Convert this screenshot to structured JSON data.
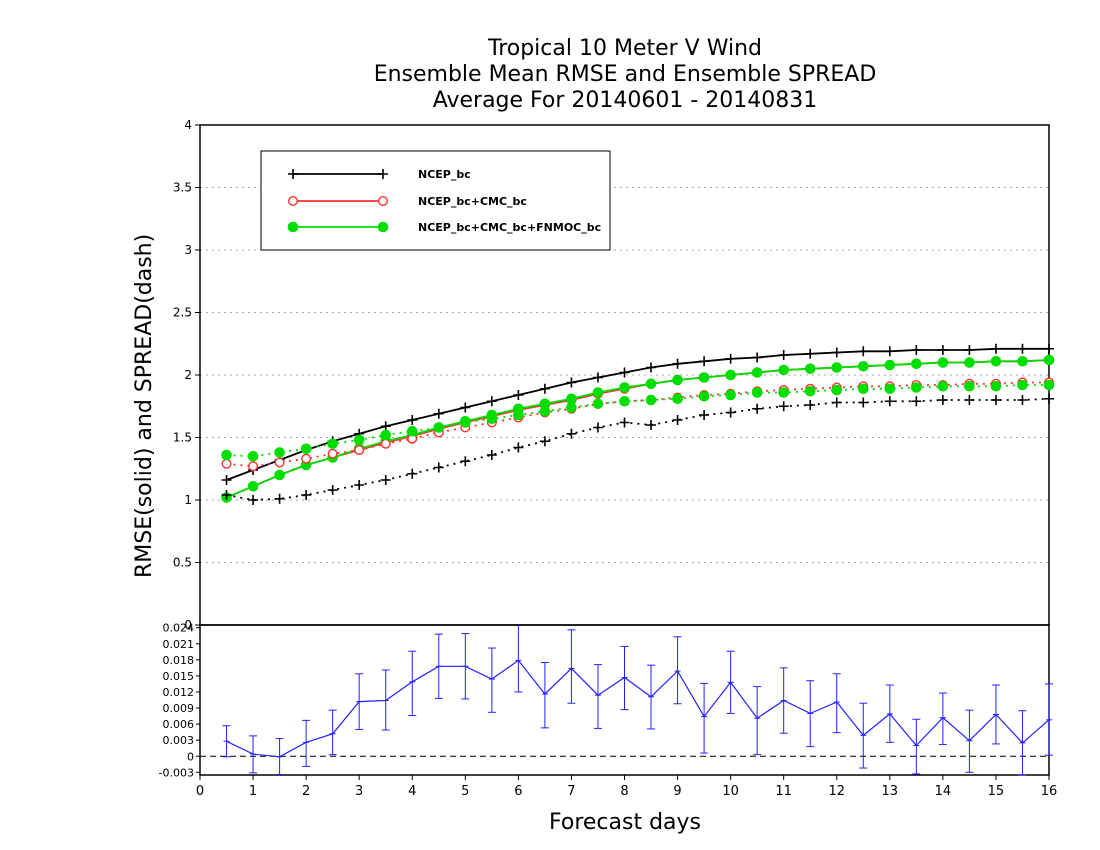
{
  "chart_data": [
    {
      "type": "line",
      "title": [
        "Tropical 10 Meter V Wind",
        "Ensemble Mean RMSE and Ensemble SPREAD",
        "Average For 20140601 - 20140831"
      ],
      "xlabel": "Forecast days",
      "ylabel": "RMSE(solid) and SPREAD(dash)",
      "x": [
        0.5,
        1.0,
        1.5,
        2.0,
        2.5,
        3.0,
        3.5,
        4.0,
        4.5,
        5.0,
        5.5,
        6.0,
        6.5,
        7.0,
        7.5,
        8.0,
        8.5,
        9.0,
        9.5,
        10.0,
        10.5,
        11.0,
        11.5,
        12.0,
        12.5,
        13.0,
        13.5,
        14.0,
        14.5,
        15.0,
        15.5,
        16.0
      ],
      "xlim": [
        0,
        16
      ],
      "ylim": [
        0,
        4
      ],
      "yticks": [
        0,
        0.5,
        1,
        1.5,
        2,
        2.5,
        3,
        3.5,
        4
      ],
      "grid": true,
      "legend_position": "top-left",
      "series": [
        {
          "name": "NCEP_bc",
          "style": "solid",
          "marker": "plus",
          "color": "#000000",
          "values": [
            1.16,
            1.24,
            1.32,
            1.4,
            1.47,
            1.53,
            1.59,
            1.64,
            1.69,
            1.74,
            1.79,
            1.84,
            1.89,
            1.94,
            1.98,
            2.02,
            2.06,
            2.09,
            2.11,
            2.13,
            2.14,
            2.16,
            2.17,
            2.18,
            2.19,
            2.19,
            2.2,
            2.2,
            2.2,
            2.21,
            2.21,
            2.21
          ]
        },
        {
          "name": "NCEP_bc+CMC_bc",
          "style": "solid",
          "marker": "open-circle",
          "color": "#ff3030",
          "values": [
            1.02,
            1.11,
            1.2,
            1.28,
            1.34,
            1.4,
            1.46,
            1.51,
            1.57,
            1.62,
            1.67,
            1.72,
            1.76,
            1.8,
            1.85,
            1.89,
            1.93,
            1.96,
            1.98,
            2.0,
            2.02,
            2.04,
            2.05,
            2.06,
            2.07,
            2.08,
            2.09,
            2.1,
            2.1,
            2.11,
            2.11,
            2.12
          ]
        },
        {
          "name": "NCEP_bc+CMC_bc+FNMOC_bc",
          "style": "solid",
          "marker": "filled-circle",
          "color": "#00dd00",
          "values": [
            1.02,
            1.11,
            1.2,
            1.28,
            1.34,
            1.41,
            1.47,
            1.52,
            1.58,
            1.63,
            1.68,
            1.73,
            1.77,
            1.81,
            1.86,
            1.9,
            1.93,
            1.96,
            1.98,
            2.0,
            2.02,
            2.04,
            2.05,
            2.06,
            2.07,
            2.08,
            2.09,
            2.1,
            2.1,
            2.11,
            2.11,
            2.12
          ]
        },
        {
          "name": "NCEP_bc",
          "style": "dash",
          "marker": "plus",
          "color": "#000000",
          "values": [
            1.04,
            1.0,
            1.01,
            1.04,
            1.08,
            1.12,
            1.16,
            1.21,
            1.26,
            1.31,
            1.36,
            1.42,
            1.47,
            1.53,
            1.58,
            1.62,
            1.6,
            1.64,
            1.68,
            1.7,
            1.73,
            1.75,
            1.76,
            1.78,
            1.78,
            1.79,
            1.79,
            1.8,
            1.8,
            1.8,
            1.8,
            1.81
          ]
        },
        {
          "name": "NCEP_bc+CMC_bc",
          "style": "dash",
          "marker": "open-circle",
          "color": "#ff3030",
          "values": [
            1.29,
            1.27,
            1.3,
            1.33,
            1.37,
            1.4,
            1.45,
            1.49,
            1.54,
            1.58,
            1.62,
            1.66,
            1.7,
            1.73,
            1.77,
            1.79,
            1.8,
            1.82,
            1.84,
            1.85,
            1.87,
            1.88,
            1.89,
            1.9,
            1.91,
            1.91,
            1.92,
            1.92,
            1.93,
            1.93,
            1.94,
            1.94
          ]
        },
        {
          "name": "NCEP_bc+CMC_bc+FNMOC_bc",
          "style": "dash",
          "marker": "filled-circle",
          "color": "#00dd00",
          "values": [
            1.36,
            1.35,
            1.38,
            1.41,
            1.45,
            1.48,
            1.52,
            1.55,
            1.58,
            1.62,
            1.65,
            1.68,
            1.71,
            1.74,
            1.77,
            1.79,
            1.8,
            1.81,
            1.83,
            1.84,
            1.86,
            1.86,
            1.87,
            1.88,
            1.89,
            1.89,
            1.9,
            1.91,
            1.91,
            1.91,
            1.92,
            1.92
          ]
        }
      ]
    },
    {
      "type": "line",
      "xlabel": "Forecast days",
      "x": [
        0.5,
        1.0,
        1.5,
        2.0,
        2.5,
        3.0,
        3.5,
        4.0,
        4.5,
        5.0,
        5.5,
        6.0,
        6.5,
        7.0,
        7.5,
        8.0,
        8.5,
        9.0,
        9.5,
        10.0,
        10.5,
        11.0,
        11.5,
        12.0,
        12.5,
        13.0,
        13.5,
        14.0,
        14.5,
        15.0,
        15.5,
        16.0
      ],
      "xlim": [
        0,
        16
      ],
      "xticks": [
        "0",
        "1",
        "2",
        "3",
        "4",
        "5",
        "6",
        "7",
        "8",
        "9",
        "10",
        "11",
        "12",
        "13",
        "14",
        "15",
        "16"
      ],
      "ylim": [
        -0.0035,
        0.0245
      ],
      "yticks": [
        "-0.003",
        "0",
        "0.003",
        "0.006",
        "0.009",
        "0.012",
        "0.015",
        "0.018",
        "0.021",
        "0.024"
      ],
      "zero_line": "dashed",
      "color": "#2222ff",
      "error_bars": true,
      "values": [
        0.0028,
        0.0004,
        -0.0001,
        0.0026,
        0.0042,
        0.0102,
        0.0104,
        0.0139,
        0.0168,
        0.0168,
        0.0144,
        0.0179,
        0.0116,
        0.0164,
        0.0114,
        0.0147,
        0.0111,
        0.0159,
        0.0074,
        0.0138,
        0.0071,
        0.0104,
        0.008,
        0.0101,
        0.0039,
        0.0079,
        0.002,
        0.0072,
        0.0029,
        0.0078,
        0.0025,
        0.0068
      ],
      "err_low": [
        -0.0001,
        -0.0031,
        -0.0034,
        -0.0019,
        0.0003,
        0.005,
        0.0049,
        0.0076,
        0.0108,
        0.0107,
        0.0082,
        0.012,
        0.0053,
        0.0099,
        0.0052,
        0.0087,
        0.0051,
        0.0098,
        0.0006,
        0.008,
        0.0003,
        0.0043,
        0.0018,
        0.0044,
        -0.0022,
        0.0026,
        -0.0033,
        0.0022,
        -0.003,
        0.0023,
        -0.0035,
        0.0002
      ],
      "err_high": [
        0.0057,
        0.0038,
        0.0033,
        0.0067,
        0.0086,
        0.0154,
        0.0161,
        0.0196,
        0.0228,
        0.0229,
        0.0202,
        0.0246,
        0.0175,
        0.0236,
        0.0171,
        0.0205,
        0.017,
        0.0223,
        0.0136,
        0.0196,
        0.013,
        0.0165,
        0.0141,
        0.0154,
        0.0099,
        0.0133,
        0.0069,
        0.0118,
        0.0086,
        0.0133,
        0.0085,
        0.0135
      ]
    }
  ]
}
